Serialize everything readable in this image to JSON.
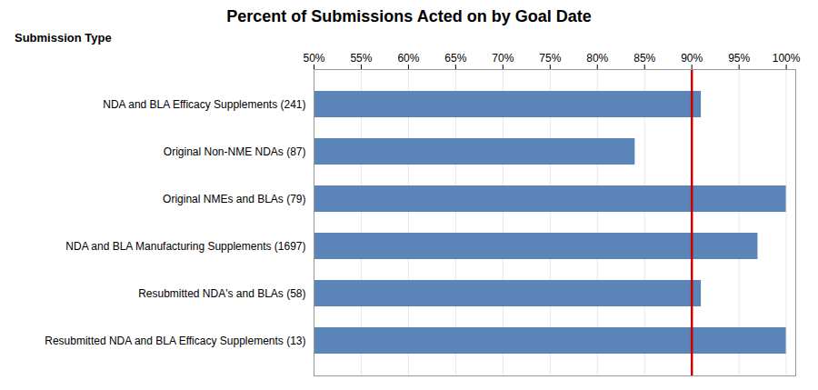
{
  "chart_data": {
    "type": "bar",
    "orientation": "horizontal",
    "title": "Percent of Submissions Acted on by Goal Date",
    "subtitle": "Submission Type",
    "categories": [
      "Resubmitted NDA and BLA Efficacy Supplements (13)",
      "Resubmitted NDA's and BLAs (58)",
      "NDA and BLA Manufacturing Supplements (1697)",
      "Original NMEs and BLAs (79)",
      "Original Non-NME NDAs (87)",
      "NDA and BLA Efficacy Supplements (241)"
    ],
    "values": [
      100,
      91,
      97,
      100,
      84,
      91
    ],
    "color": "#5b84b8",
    "goal_line": {
      "value": 90,
      "color": "#cc0000"
    },
    "xlim": [
      50,
      101
    ],
    "xticks": [
      {
        "value": 50,
        "label": "50%"
      },
      {
        "value": 55,
        "label": "55%"
      },
      {
        "value": 60,
        "label": "60%"
      },
      {
        "value": 65,
        "label": "65%"
      },
      {
        "value": 70,
        "label": "70%"
      },
      {
        "value": 75,
        "label": "75%"
      },
      {
        "value": 80,
        "label": "80%"
      },
      {
        "value": 85,
        "label": "85%"
      },
      {
        "value": 90,
        "label": "90%"
      },
      {
        "value": 95,
        "label": "95%"
      },
      {
        "value": 100,
        "label": "100%"
      }
    ],
    "grid": true
  }
}
